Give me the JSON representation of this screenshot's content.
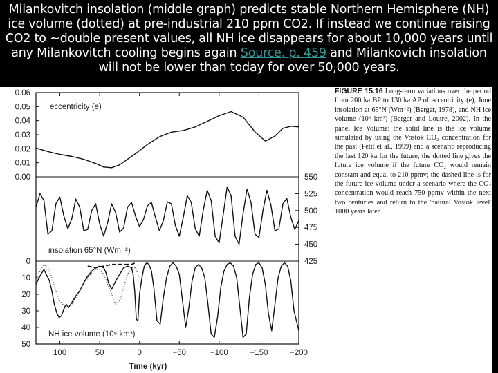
{
  "banner": {
    "text_before_link": "Milankovitch insolation (middle graph) predicts stable Northern Hemisphere (NH) ice volume (dotted) at pre-industrial 210 ppm CO2. If instead we continue raising CO2 to ~double present values, all NH ice disappears for about 10,000 years until any Milankovitch cooling begins again ",
    "link_text": "Source, p. 459",
    "text_after_link": " and Milankovich insolation will not be lower than today for over 50,000 years."
  },
  "caption": {
    "figure_label": "FIGURE 15.16",
    "text": "Long-term variations over the period from 200 ka BP to 130 ka AP of eccentricity (e), June insolation at 65°N (Wm⁻²) (Berger, 1978), and NH ice volume (10⁶ km³) (Berger and Loutre, 2002). In the panel Ice Volume: the solid line is the ice volume simulated by using the Vostok CO₂ concentration for the past (Petit et al., 1999) and a scenario reproducing the last 120 ka for the future; the dotted line gives the future ice volume if the future CO₂ would remain constant and equal to 210 ppmv; the dashed line is for the future ice volume under a scenario where the CO₂ concentration would reach 750 ppmv within the next two centuries and return to the 'natural Vostok level' 1000 years later."
  },
  "chart_data": [
    {
      "type": "line",
      "panel_label": "eccentricity (e)",
      "x_axis_title": "Time (kyr)",
      "x_ticks": [
        100,
        50,
        0,
        -50,
        -100,
        -150,
        -200
      ],
      "xlim": [
        130,
        -200
      ],
      "y_ticks": [
        "0.06",
        "0.05",
        "0.04",
        "0.03",
        "0.02",
        "0.01",
        "0.00"
      ],
      "ylim": [
        0,
        0.06
      ],
      "series": [
        {
          "x": [
            130,
            115,
            100,
            85,
            70,
            55,
            45,
            35,
            25,
            15,
            5,
            -10,
            -25,
            -40,
            -55,
            -70,
            -85,
            -100,
            -115,
            -130,
            -145,
            -158,
            -170,
            -180,
            -190,
            -200
          ],
          "y": [
            0.0205,
            0.018,
            0.016,
            0.0145,
            0.0125,
            0.0095,
            0.007,
            0.0065,
            0.0085,
            0.0125,
            0.0165,
            0.023,
            0.0285,
            0.0318,
            0.033,
            0.0355,
            0.0395,
            0.0435,
            0.0465,
            0.0425,
            0.032,
            0.0255,
            0.029,
            0.0345,
            0.036,
            0.0355
          ]
        }
      ]
    },
    {
      "type": "line",
      "panel_label": "insolation 65°N (Wm⁻²)",
      "y_ticks": [
        "550",
        "525",
        "500",
        "475",
        "450",
        "425"
      ],
      "ylim": [
        425,
        550
      ],
      "series": [
        {
          "x": [
            130,
            125,
            120,
            115,
            110,
            105,
            100,
            95,
            90,
            85,
            80,
            75,
            70,
            65,
            60,
            55,
            50,
            45,
            40,
            35,
            30,
            25,
            20,
            15,
            10,
            5,
            0,
            -5,
            -10,
            -15,
            -20,
            -25,
            -30,
            -35,
            -40,
            -45,
            -50,
            -55,
            -60,
            -65,
            -70,
            -75,
            -80,
            -85,
            -90,
            -95,
            -100,
            -105,
            -110,
            -115,
            -120,
            -125,
            -130,
            -135,
            -140,
            -145,
            -150,
            -155,
            -160,
            -165,
            -170,
            -175,
            -180,
            -185,
            -190,
            -195,
            -200
          ],
          "y": [
            505,
            525,
            515,
            465,
            470,
            510,
            520,
            492,
            473,
            488,
            517,
            505,
            470,
            472,
            500,
            510,
            480,
            462,
            482,
            510,
            497,
            468,
            474,
            505,
            512,
            492,
            476,
            487,
            507,
            512,
            490,
            470,
            485,
            513,
            510,
            478,
            462,
            490,
            522,
            512,
            473,
            462,
            500,
            530,
            515,
            462,
            452,
            493,
            535,
            522,
            462,
            450,
            495,
            532,
            512,
            465,
            460,
            500,
            530,
            508,
            470,
            473,
            510,
            518,
            490,
            472,
            485
          ]
        }
      ]
    },
    {
      "type": "line",
      "panel_label": "NH ice volume (10⁶ km³)",
      "y_ticks": [
        "0",
        "10",
        "20",
        "30",
        "40",
        "50"
      ],
      "ylim": [
        0,
        50
      ],
      "series": [
        {
          "style": "solid",
          "x": [
            130,
            125,
            120,
            117,
            113,
            110,
            107,
            104,
            101,
            98,
            95,
            92,
            89,
            85,
            80,
            75,
            70,
            65,
            60,
            55,
            50,
            45,
            42,
            39,
            35,
            30,
            25,
            20,
            15,
            10,
            8,
            6,
            4,
            2,
            0,
            -3,
            -6,
            -9,
            -12,
            -15,
            -18,
            -22,
            -26,
            -30,
            -34,
            -38,
            -42,
            -46,
            -50,
            -54,
            -58,
            -62,
            -66,
            -70,
            -74,
            -78,
            -82,
            -86,
            -90,
            -94,
            -98,
            -102,
            -106,
            -110,
            -114,
            -118,
            -122,
            -126,
            -130,
            -134,
            -138,
            -142,
            -146,
            -150,
            -154,
            -158,
            -162,
            -166,
            -170,
            -174,
            -178,
            -182,
            -186,
            -190,
            -194,
            -200
          ],
          "y": [
            14,
            9,
            5,
            8,
            12,
            18,
            26,
            31,
            34,
            33,
            29,
            26,
            28,
            25,
            21,
            18,
            13,
            9,
            6,
            4,
            3,
            4,
            7,
            13,
            17,
            12,
            8,
            4,
            3,
            4,
            8,
            18,
            35,
            36,
            20,
            10,
            3,
            1,
            2,
            6,
            16,
            36,
            38,
            22,
            10,
            3,
            1,
            3,
            8,
            24,
            40,
            28,
            12,
            4,
            2,
            4,
            10,
            26,
            44,
            46,
            34,
            16,
            6,
            2,
            1,
            3,
            10,
            28,
            46,
            44,
            22,
            8,
            2,
            1,
            4,
            14,
            32,
            42,
            26,
            10,
            3,
            1,
            3,
            12,
            30,
            42
          ]
        },
        {
          "style": "dotted",
          "x": [
            130,
            125,
            120,
            115,
            110,
            105,
            100,
            95,
            90,
            85,
            80,
            75,
            70,
            65,
            60,
            55,
            50,
            45,
            40,
            35,
            30,
            25,
            20,
            15,
            10,
            5,
            0
          ],
          "y": [
            12,
            6,
            2,
            4,
            10,
            18,
            24,
            27,
            28,
            26,
            22,
            18,
            14,
            10,
            7,
            5,
            5,
            8,
            14,
            20,
            26,
            24,
            16,
            8,
            4,
            4,
            10
          ]
        },
        {
          "style": "dashed",
          "x": [
            65,
            55,
            45,
            35,
            25,
            20,
            15,
            10,
            5
          ],
          "y": [
            3,
            4,
            3,
            2,
            2,
            2,
            2,
            2,
            1
          ]
        }
      ]
    }
  ]
}
